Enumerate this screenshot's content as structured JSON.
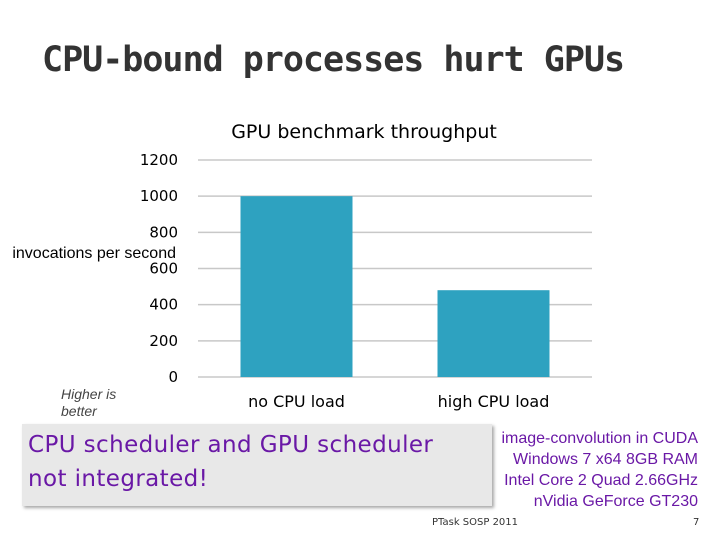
{
  "slide": {
    "title": "CPU-bound processes hurt GPUs",
    "note": "Higher is better",
    "callout": [
      "CPU scheduler and GPU scheduler",
      "not integrated!"
    ],
    "specs": [
      "image-convolution in CUDA",
      "Windows 7 x64 8GB RAM",
      "Intel Core 2 Quad 2.66GHz",
      "nVidia GeForce GT230"
    ],
    "footer": "PTask SOSP 2011",
    "page_number": "7"
  },
  "colors": {
    "bar": "#2ea2c0",
    "grid": "#c8c8c8",
    "accent": "#6a18a6"
  },
  "chart_data": {
    "type": "bar",
    "title": "GPU benchmark throughput",
    "ylabel": "invocations per second",
    "categories": [
      "no CPU load",
      "high CPU load"
    ],
    "values": [
      1000,
      480
    ],
    "ylim": [
      0,
      1200
    ],
    "yticks": [
      "0",
      "200",
      "400",
      "600",
      "800",
      "1000",
      "1200"
    ],
    "grid": true,
    "legend": "none"
  }
}
